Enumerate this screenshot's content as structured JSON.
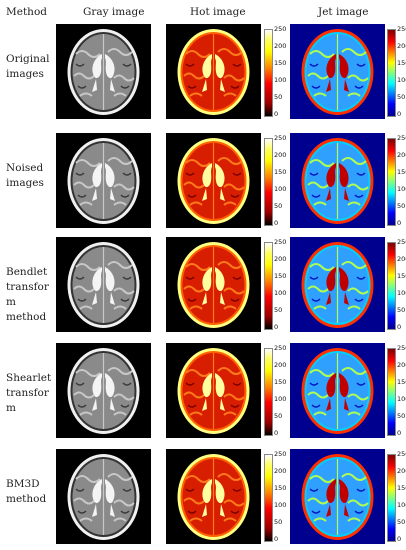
{
  "header": {
    "method": "Method",
    "gray": "Gray image",
    "hot": "Hot image",
    "jet": "Jet image"
  },
  "rows": [
    {
      "label": "Original\nimages"
    },
    {
      "label": "Noised\nimages"
    },
    {
      "label": "Bendlet\ntransfor\nm\nmethod"
    },
    {
      "label": "Shearlet\ntransfor\nm"
    },
    {
      "label": "BM3D\nmethod"
    }
  ],
  "colorbar": {
    "ticks": [
      "250",
      "200",
      "150",
      "100",
      "50",
      "0"
    ]
  }
}
